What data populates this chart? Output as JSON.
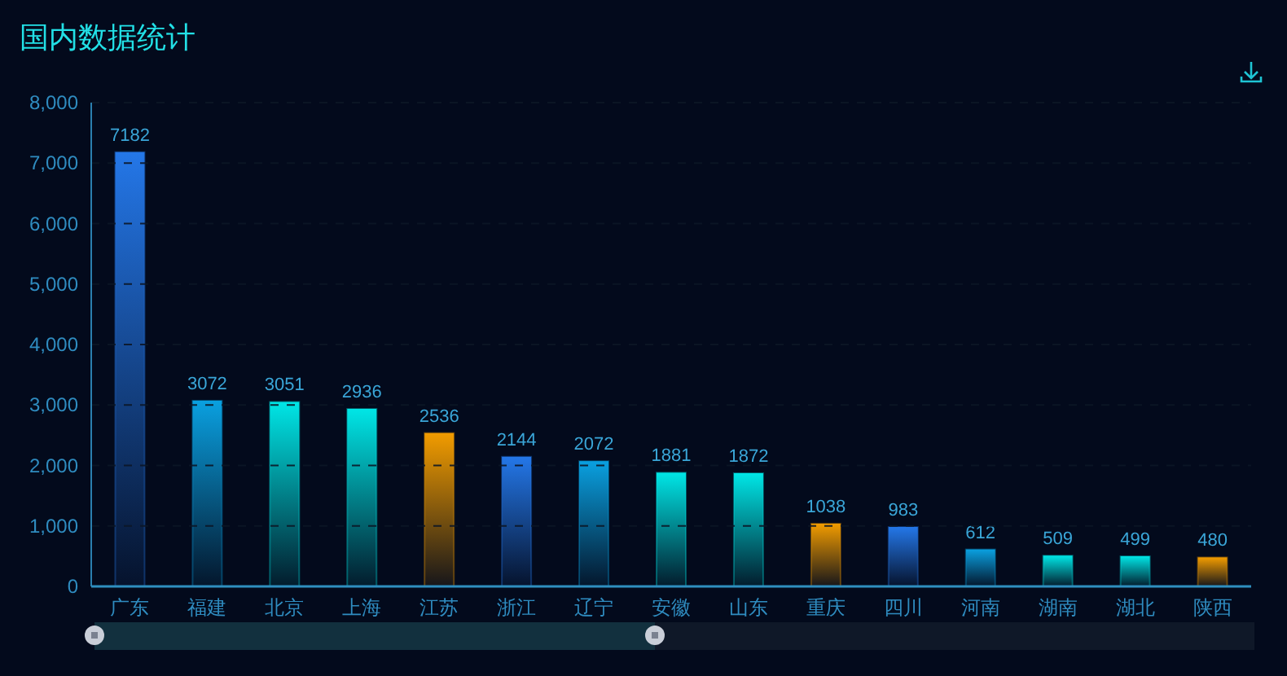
{
  "chart_data": {
    "type": "bar",
    "title": "国内数据统计",
    "categories": [
      "广东",
      "福建",
      "北京",
      "上海",
      "江苏",
      "浙江",
      "辽宁",
      "安徽",
      "山东",
      "重庆",
      "四川",
      "河南",
      "湖南",
      "湖北",
      "陕西"
    ],
    "values": [
      7182,
      3072,
      3051,
      2936,
      2536,
      2144,
      2072,
      1881,
      1872,
      1038,
      983,
      612,
      509,
      499,
      480
    ],
    "colors": [
      "#2477e8",
      "#0aa0e0",
      "#00e6e6",
      "#00e6e6",
      "#f29c00",
      "#2477e8",
      "#0aa0e0",
      "#00e6e6",
      "#00e6e6",
      "#f29c00",
      "#2477e8",
      "#0aa0e0",
      "#00e6e6",
      "#00e6e6",
      "#f29c00"
    ],
    "ylim": [
      0,
      8000
    ],
    "yticks": [
      0,
      {
        "value": 1000,
        "label": "1,000"
      },
      {
        "value": 2000,
        "label": "2,000"
      },
      {
        "value": 3000,
        "label": "3,000"
      },
      {
        "value": 4000,
        "label": "4,000"
      },
      {
        "value": 5000,
        "label": "5,000"
      },
      {
        "value": 6000,
        "label": "6,000"
      },
      {
        "value": 7000,
        "label": "7,000"
      },
      {
        "value": 8000,
        "label": "8,000"
      }
    ],
    "grid": "y",
    "data_labels": true
  }
}
